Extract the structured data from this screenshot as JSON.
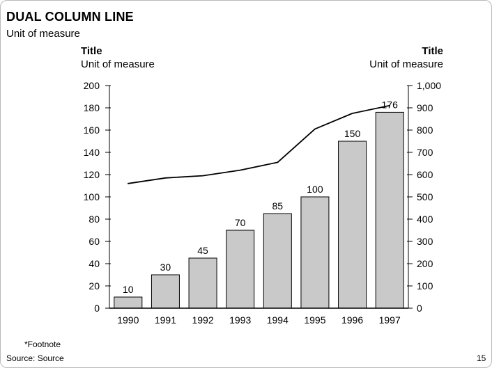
{
  "page": {
    "title": "DUAL COLUMN LINE",
    "subtitle": "Unit of measure",
    "footnote": "*Footnote",
    "source": "Source: Source",
    "page_number": "15"
  },
  "chart_data": {
    "type": "bar",
    "subtype": "dual-axis-column-line",
    "left_header": {
      "title": "Title",
      "subtitle": "Unit of measure"
    },
    "right_header": {
      "title": "Title",
      "subtitle": "Unit of measure"
    },
    "categories": [
      "1990",
      "1991",
      "1992",
      "1993",
      "1994",
      "1995",
      "1996",
      "1997"
    ],
    "series": [
      {
        "name": "columns",
        "type": "bar",
        "axis": "left",
        "values": [
          10,
          30,
          45,
          70,
          85,
          100,
          150,
          176
        ],
        "labels": [
          "10",
          "30",
          "45",
          "70",
          "85",
          "100",
          "150",
          "176"
        ],
        "fill_color": "#c9c9c9",
        "stroke_color": "#000000"
      },
      {
        "name": "line",
        "type": "line",
        "axis": "right",
        "values": [
          560,
          585,
          595,
          620,
          655,
          805,
          875,
          910
        ],
        "color": "#000000"
      }
    ],
    "left_axis": {
      "min": 0,
      "max": 200,
      "tick_step": 20,
      "tick_labels": [
        "0",
        "20",
        "40",
        "60",
        "80",
        "100",
        "120",
        "140",
        "160",
        "180",
        "200"
      ]
    },
    "right_axis": {
      "min": 0,
      "max": 1000,
      "tick_step": 100,
      "tick_labels": [
        "0",
        "100",
        "200",
        "300",
        "400",
        "500",
        "600",
        "700",
        "800",
        "900",
        "1,000"
      ]
    },
    "grid": false,
    "legend": false
  }
}
